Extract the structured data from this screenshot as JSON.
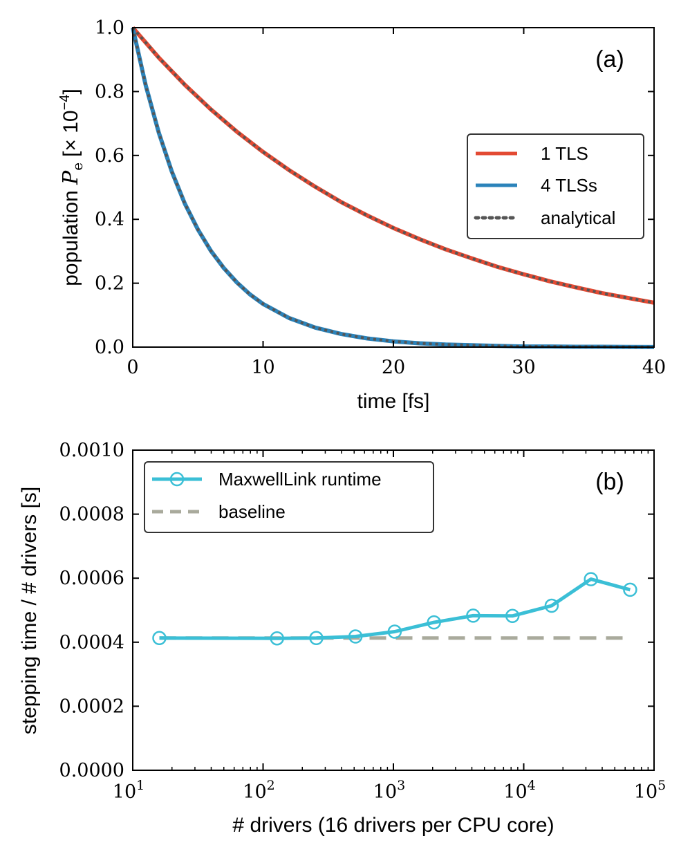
{
  "chart_data": [
    {
      "type": "line",
      "panel_label": "(a)",
      "xlabel": "time [fs]",
      "ylabel_prefix": "population ",
      "ylabel_symbol": "P",
      "ylabel_subscript": "e",
      "ylabel_units": "[× 10",
      "ylabel_exponent": "−4",
      "ylabel_close": "]",
      "xlim": [
        0,
        40
      ],
      "ylim": [
        0,
        1.0
      ],
      "xticks": [
        0,
        10,
        20,
        30,
        40
      ],
      "xtick_labels": [
        "0",
        "10",
        "20",
        "30",
        "40"
      ],
      "yticks": [
        0.0,
        0.2,
        0.4,
        0.6,
        0.8,
        1.0
      ],
      "ytick_labels": [
        "0.0",
        "0.2",
        "0.4",
        "0.6",
        "0.8",
        "1.0"
      ],
      "legend_position": "center-right",
      "series": [
        {
          "name": "1 TLS",
          "color": "#e34a33",
          "style": "solid",
          "x": [
            0,
            2,
            4,
            6,
            8,
            10,
            12,
            14,
            16,
            18,
            20,
            22,
            24,
            26,
            28,
            30,
            32,
            34,
            36,
            38,
            40
          ],
          "y": [
            1.0,
            0.906,
            0.821,
            0.744,
            0.674,
            0.611,
            0.554,
            0.502,
            0.454,
            0.412,
            0.373,
            0.338,
            0.306,
            0.278,
            0.251,
            0.228,
            0.206,
            0.187,
            0.169,
            0.154,
            0.139
          ]
        },
        {
          "name": "4 TLSs",
          "color": "#2b83ba",
          "style": "solid",
          "x": [
            0,
            1,
            2,
            3,
            4,
            5,
            6,
            7,
            8,
            9,
            10,
            12,
            14,
            16,
            18,
            20,
            22,
            24,
            26,
            28,
            30,
            32,
            34,
            36,
            38,
            40
          ],
          "y": [
            1.0,
            0.819,
            0.671,
            0.549,
            0.449,
            0.368,
            0.301,
            0.247,
            0.202,
            0.165,
            0.135,
            0.091,
            0.061,
            0.041,
            0.027,
            0.018,
            0.012,
            0.008,
            0.006,
            0.004,
            0.002,
            0.002,
            0.001,
            0.001,
            0.0005,
            0.0003
          ]
        },
        {
          "name": "analytical",
          "color": "#555555",
          "style": "dotted",
          "x": [],
          "y": []
        }
      ]
    },
    {
      "type": "line",
      "panel_label": "(b)",
      "xlabel": "# drivers (16 drivers per CPU core)",
      "ylabel": "stepping time / # drivers [s]",
      "xscale": "log",
      "xlim": [
        10,
        100000
      ],
      "ylim": [
        0,
        0.001
      ],
      "xticks": [
        10,
        100,
        1000,
        10000,
        100000
      ],
      "xtick_base": "10",
      "xtick_exponents": [
        "1",
        "2",
        "3",
        "4",
        "5"
      ],
      "yticks": [
        0.0,
        0.0002,
        0.0004,
        0.0006,
        0.0008,
        0.001
      ],
      "ytick_labels": [
        "0.0000",
        "0.0002",
        "0.0004",
        "0.0006",
        "0.0008",
        "0.0010"
      ],
      "legend_position": "top-left",
      "series": [
        {
          "name": "MaxwellLink runtime",
          "color": "#3bbfd6",
          "style": "solid-circle-markers",
          "x": [
            16,
            128,
            256,
            512,
            1024,
            2048,
            4096,
            8192,
            16384,
            32768,
            65536
          ],
          "y": [
            0.000413,
            0.000412,
            0.000413,
            0.000418,
            0.000433,
            0.000462,
            0.000483,
            0.000482,
            0.000514,
            0.000597,
            0.000564
          ]
        },
        {
          "name": "baseline",
          "color": "#a9aa9c",
          "style": "dashed",
          "x": [
            16,
            65536
          ],
          "y": [
            0.000413,
            0.000413
          ]
        }
      ]
    }
  ]
}
